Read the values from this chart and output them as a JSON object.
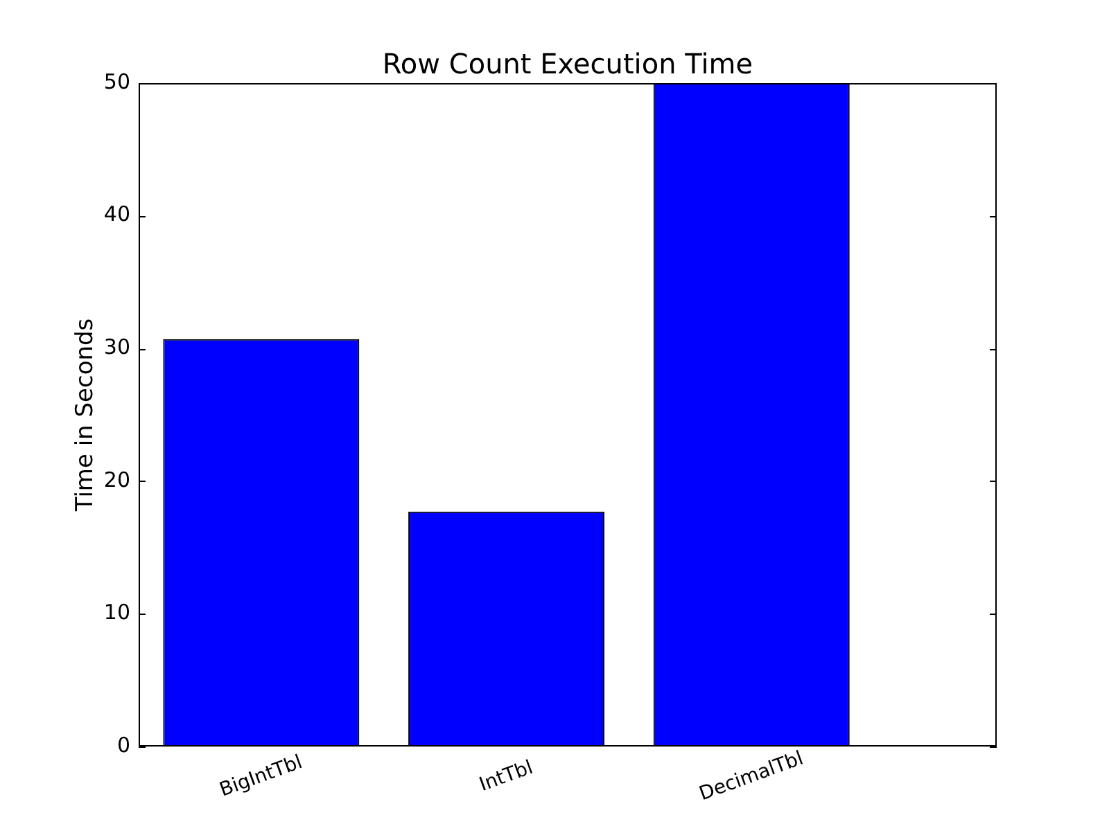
{
  "chart_data": {
    "type": "bar",
    "title": "Row Count Execution Time",
    "ylabel": "Time in Seconds",
    "categories": [
      "BigIntTbl",
      "IntTbl",
      "DecimalTbl"
    ],
    "values": [
      30.7,
      17.7,
      50
    ],
    "color": "#0000ff",
    "ylim": [
      0,
      50
    ],
    "yticks": [
      0,
      10,
      20,
      30,
      40,
      50
    ]
  }
}
